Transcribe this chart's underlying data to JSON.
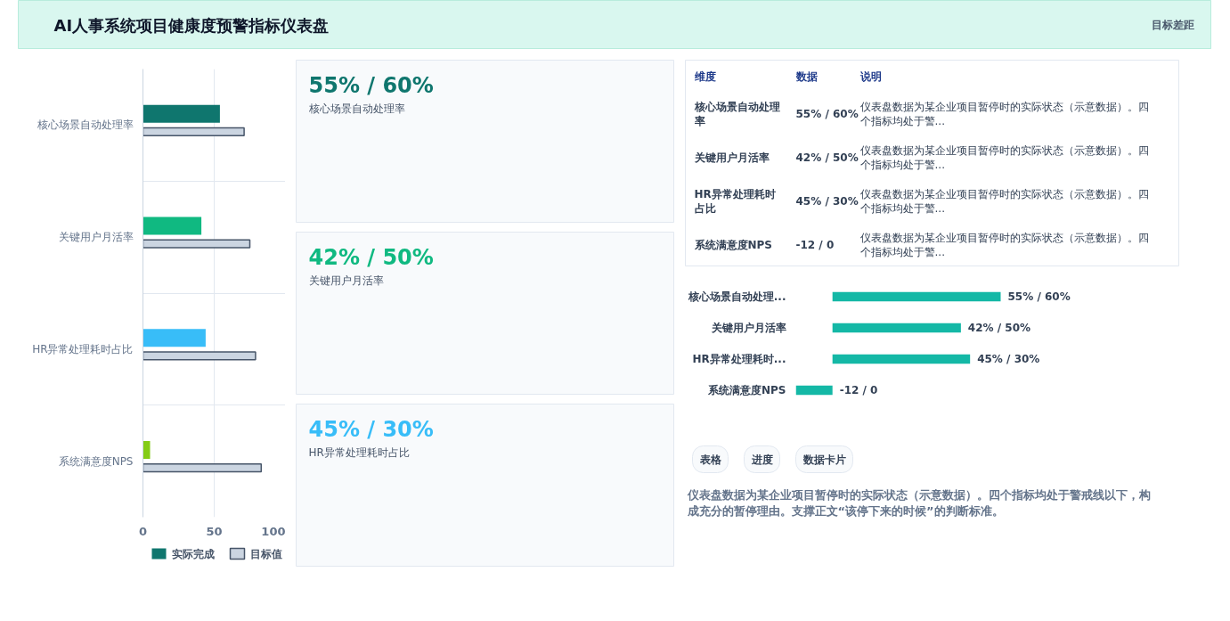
{
  "chart_data": [
    {
      "type": "other",
      "title": "AI人事系统项目健康度预警指标仪表盘",
      "annotations": [
        "目标差距"
      ]
    },
    {
      "type": "bar",
      "orientation": "horizontal",
      "categories": [
        "核心场景自动处理率",
        "关键用户月活率",
        "HR异常处理耗时占比",
        "系统满意度NPS"
      ],
      "series": [
        {
          "name": "实际完成",
          "colors": [
            "#0f766e",
            "#10b981",
            "#38bdf8",
            "#84cc16"
          ],
          "values": [
            54,
            41,
            44,
            5
          ]
        },
        {
          "name": "目标值",
          "color": "#cbd5e1",
          "values": [
            71,
            75,
            79,
            83
          ]
        }
      ],
      "xlim": [
        0,
        100
      ],
      "xticks": [
        0,
        50,
        100
      ],
      "grid": true,
      "legend": "bottom"
    },
    {
      "type": "other",
      "categories": [
        "核心场景自动处理率",
        "关键用户月活率",
        "HR异常处理耗时占比"
      ],
      "value_labels": [
        "55% / 60%",
        "42% / 50%",
        "45% / 30%"
      ]
    },
    {
      "type": "other",
      "categories": [
        "维度",
        "数据",
        "说明"
      ],
      "cell_labels": [
        [
          "核心场景自动处理率",
          "55% / 60%",
          "仪表盘数据为某企业项目暂停时的实际状态（示意数据）。四个指标均处于警..."
        ],
        [
          "关键用户月活率",
          "42% / 50%",
          "仪表盘数据为某企业项目暂停时的实际状态（示意数据）。四个指标均处于警..."
        ],
        [
          "HR异常处理耗时占比",
          "45% / 30%",
          "仪表盘数据为某企业项目暂停时的实际状态（示意数据）。四个指标均处于警..."
        ],
        [
          "系统满意度NPS",
          "-12 / 0",
          "仪表盘数据为某企业项目暂停时的实际状态（示意数据）。四个指标均处于警..."
        ]
      ]
    },
    {
      "type": "bar",
      "orientation": "horizontal",
      "categories": [
        "核心场景自动处理...",
        "关键用户月活率",
        "HR异常处理耗时...",
        "系统满意度NPS"
      ],
      "values": [
        55,
        42,
        45,
        -12
      ],
      "tick_labels": "y",
      "color": "#14b8a6",
      "value_labels": [
        "55% / 60%",
        "42% / 50%",
        "45% / 30%",
        "-12 / 0"
      ]
    },
    {
      "type": "other",
      "annotations": [
        "表格",
        "进度",
        "数据卡片",
        "仪表盘数据为某企业项目暂停时的实际状态（示意数据）。四个指标均处于警戒线以下，构成充分的暂停理由。支撑正文“该停下来的时候”的判断标准。"
      ]
    }
  ]
}
